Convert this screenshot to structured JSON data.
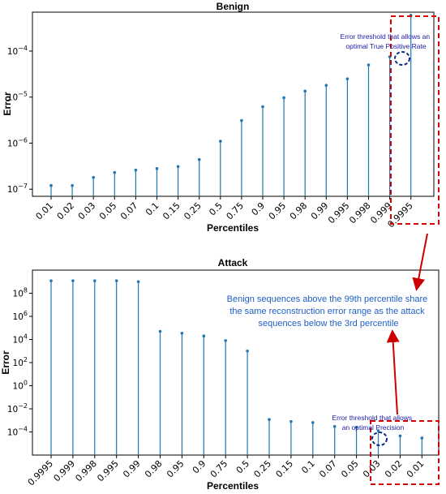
{
  "chart_data": [
    {
      "type": "stem",
      "title": "Benign",
      "xlabel": "Percentiles",
      "ylabel": "Error",
      "yscale": "log",
      "ylim": [
        7e-08,
        0.0007
      ],
      "yticks": [
        {
          "value": 1e-07,
          "base": "10",
          "exp": "−7"
        },
        {
          "value": 1e-06,
          "base": "10",
          "exp": "−6"
        },
        {
          "value": 1e-05,
          "base": "10",
          "exp": "−5"
        },
        {
          "value": 0.0001,
          "base": "10",
          "exp": "−4"
        }
      ],
      "categories": [
        "0.01",
        "0.02",
        "0.03",
        "0.05",
        "0.07",
        "0.1",
        "0.15",
        "0.25",
        "0.5",
        "0.75",
        "0.9",
        "0.95",
        "0.98",
        "0.99",
        "0.995",
        "0.998",
        "0.999",
        "0.9995"
      ],
      "values": [
        1.2e-07,
        1.2e-07,
        1.8e-07,
        2.3e-07,
        2.6e-07,
        2.8e-07,
        3.1e-07,
        4.4e-07,
        1.1e-06,
        3.1e-06,
        6.2e-06,
        9.7e-06,
        1.35e-05,
        1.8e-05,
        2.5e-05,
        5e-05,
        7.5e-05,
        0.0006
      ],
      "color": "#1f77b4",
      "annotation": "Error threshold that allows an optimal True Positive Rate",
      "annotation_lines": [
        "Error threshold that allows an",
        "optimal True Positive Rate"
      ],
      "highlight": [
        "0.999",
        "0.9995"
      ]
    },
    {
      "type": "stem",
      "title": "Attack",
      "xlabel": "Percentiles",
      "ylabel": "Error",
      "yscale": "log",
      "ylim": [
        1e-06,
        10000000000.0
      ],
      "yticks": [
        {
          "value": 0.0001,
          "base": "10",
          "exp": "−4"
        },
        {
          "value": 0.01,
          "base": "10",
          "exp": "−2"
        },
        {
          "value": 1.0,
          "base": "10",
          "exp": "0"
        },
        {
          "value": 100.0,
          "base": "10",
          "exp": "2"
        },
        {
          "value": 10000.0,
          "base": "10",
          "exp": "4"
        },
        {
          "value": 1000000.0,
          "base": "10",
          "exp": "6"
        },
        {
          "value": 100000000.0,
          "base": "10",
          "exp": "8"
        }
      ],
      "categories": [
        "0.9995",
        "0.999",
        "0.998",
        "0.995",
        "0.99",
        "0.98",
        "0.95",
        "0.9",
        "0.75",
        "0.5",
        "0.25",
        "0.15",
        "0.1",
        "0.07",
        "0.05",
        "0.03",
        "0.02",
        "0.01"
      ],
      "values": [
        1200000000.0,
        1200000000.0,
        1200000000.0,
        1200000000.0,
        1000000000.0,
        50000.0,
        35000.0,
        20000.0,
        8000.0,
        1000.0,
        0.0012,
        0.0008,
        0.00065,
        0.0003,
        0.00025,
        0.00013,
        4.5e-05,
        3e-05
      ],
      "color": "#1f77b4",
      "annotation": "Error threshold that allows an optimal Precision",
      "annotation_lines": [
        "Error threshold that allows",
        "an optimal Precision"
      ],
      "highlight": [
        "0.03",
        "0.02",
        "0.01"
      ]
    }
  ],
  "callout": {
    "text": "Benign sequences above the 99th percentile share the same reconstruction error range as the attack sequences below the 3rd percentile",
    "lines": [
      "Benign sequences above the 99th percentile share",
      "the same reconstruction error range as the attack",
      "sequences below the 3rd percentile"
    ],
    "color": "#1f5fc4",
    "arrow_color": "#cc0000"
  },
  "highlight_color": "#d40000"
}
